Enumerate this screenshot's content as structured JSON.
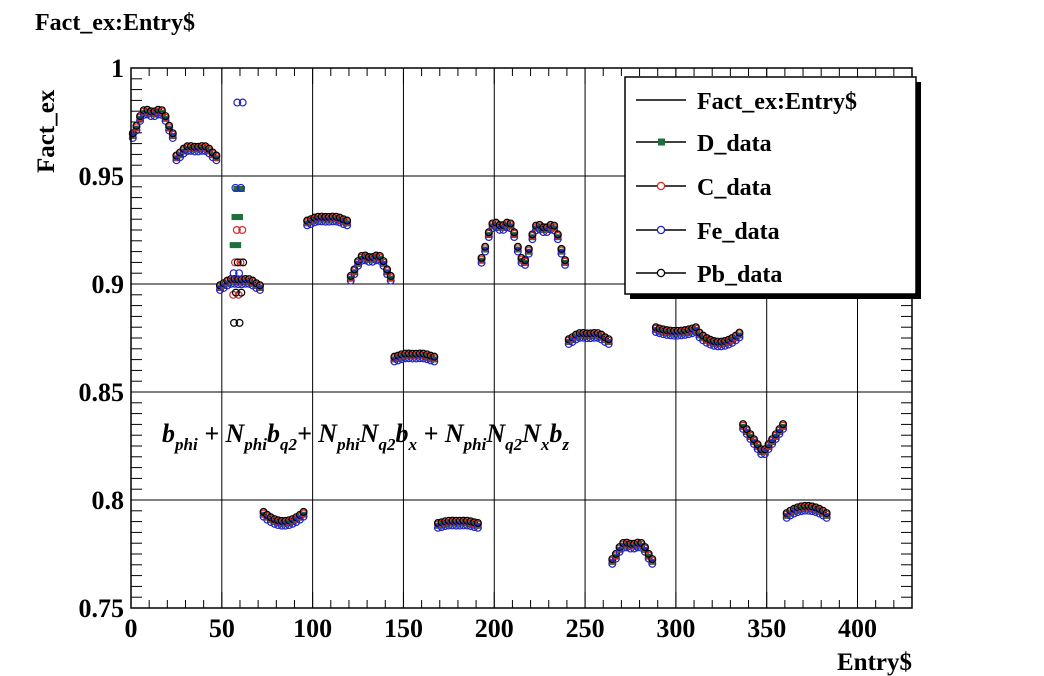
{
  "chart_data": {
    "type": "scatter",
    "title": "Fact_ex:Entry$",
    "xlabel": "Entry$",
    "ylabel": "Fact_ex",
    "xlim": [
      0,
      430
    ],
    "ylim": [
      0.75,
      1.0
    ],
    "x_ticks": [
      0,
      50,
      100,
      150,
      200,
      250,
      300,
      350,
      400
    ],
    "x_tick_labels": [
      "0",
      "50",
      "100",
      "150",
      "200",
      "250",
      "300",
      "350",
      "400"
    ],
    "y_ticks": [
      0.75,
      0.8,
      0.85,
      0.9,
      0.95,
      1.0
    ],
    "y_tick_labels": [
      "0.75",
      "0.8",
      "0.85",
      "0.9",
      "0.95",
      "1"
    ],
    "grid": true,
    "legend": {
      "placement": "top-right",
      "entries": [
        "Fact_ex:Entry$",
        "D_data",
        "C_data",
        "Fe_data",
        "Pb_data"
      ]
    },
    "annotation": {
      "segments": [
        {
          "t": "b"
        },
        {
          "t": "phi",
          "sub": true
        },
        {
          "t": " + N"
        },
        {
          "t": "phi",
          "sub": true
        },
        {
          "t": "b"
        },
        {
          "t": "q2",
          "sub": true
        },
        {
          "t": "+ N"
        },
        {
          "t": "phi",
          "sub": true
        },
        {
          "t": "N"
        },
        {
          "t": "q2",
          "sub": true
        },
        {
          "t": "b"
        },
        {
          "t": "x",
          "sub": true
        },
        {
          "t": " + N"
        },
        {
          "t": "phi",
          "sub": true
        },
        {
          "t": "N"
        },
        {
          "t": "q2",
          "sub": true
        },
        {
          "t": "N"
        },
        {
          "t": "x",
          "sub": true
        },
        {
          "t": "b"
        },
        {
          "t": "z",
          "sub": true
        }
      ]
    },
    "colors": {
      "D": "#1f6f3a",
      "C": "#d42a2a",
      "Fe": "#2222c8",
      "Pb": "#000000",
      "line": "#000000"
    },
    "groups": [
      {
        "x": [
          0,
          24
        ],
        "base": 0.968,
        "shape": "w",
        "amp": 0.03
      },
      {
        "x": [
          24,
          48
        ],
        "base": 0.958,
        "shape": "w",
        "amp": 0.012
      },
      {
        "x": [
          48,
          72
        ],
        "base": 0.898,
        "shape": "w",
        "amp": 0.008,
        "spread": {
          "x": [
            56,
            62
          ],
          "D": [
            0.918,
            0.944
          ],
          "C": [
            0.895,
            0.925
          ],
          "Fe": [
            0.905,
            0.984
          ],
          "Pb": [
            0.882,
            0.91
          ]
        }
      },
      {
        "x": [
          72,
          96
        ],
        "base": 0.789,
        "shape": "u",
        "amp": 0.005
      },
      {
        "x": [
          96,
          120
        ],
        "base": 0.928,
        "shape": "w",
        "amp": 0.005
      },
      {
        "x": [
          120,
          144
        ],
        "base": 0.902,
        "shape": "w",
        "amp": 0.026
      },
      {
        "x": [
          144,
          168
        ],
        "base": 0.865,
        "shape": "w",
        "amp": 0.004
      },
      {
        "x": [
          168,
          192
        ],
        "base": 0.788,
        "shape": "w",
        "amp": 0.003
      },
      {
        "x": [
          192,
          216
        ],
        "base": 0.91,
        "shape": "w",
        "amp": 0.045
      },
      {
        "x": [
          216,
          240
        ],
        "base": 0.909,
        "shape": "w",
        "amp": 0.045
      },
      {
        "x": [
          240,
          264
        ],
        "base": 0.873,
        "shape": "w",
        "amp": 0.008
      },
      {
        "x": [
          264,
          288
        ],
        "base": 0.771,
        "shape": "w",
        "amp": 0.021
      },
      {
        "x": [
          288,
          312
        ],
        "base": 0.877,
        "shape": "u",
        "amp": 0.002
      },
      {
        "x": [
          312,
          336
        ],
        "base": 0.872,
        "shape": "u",
        "amp": 0.005
      },
      {
        "x": [
          336,
          360
        ],
        "base": 0.821,
        "shape": "v",
        "amp": 0.014
      },
      {
        "x": [
          360,
          384
        ],
        "base": 0.792,
        "shape": "n",
        "amp": 0.004
      }
    ]
  }
}
